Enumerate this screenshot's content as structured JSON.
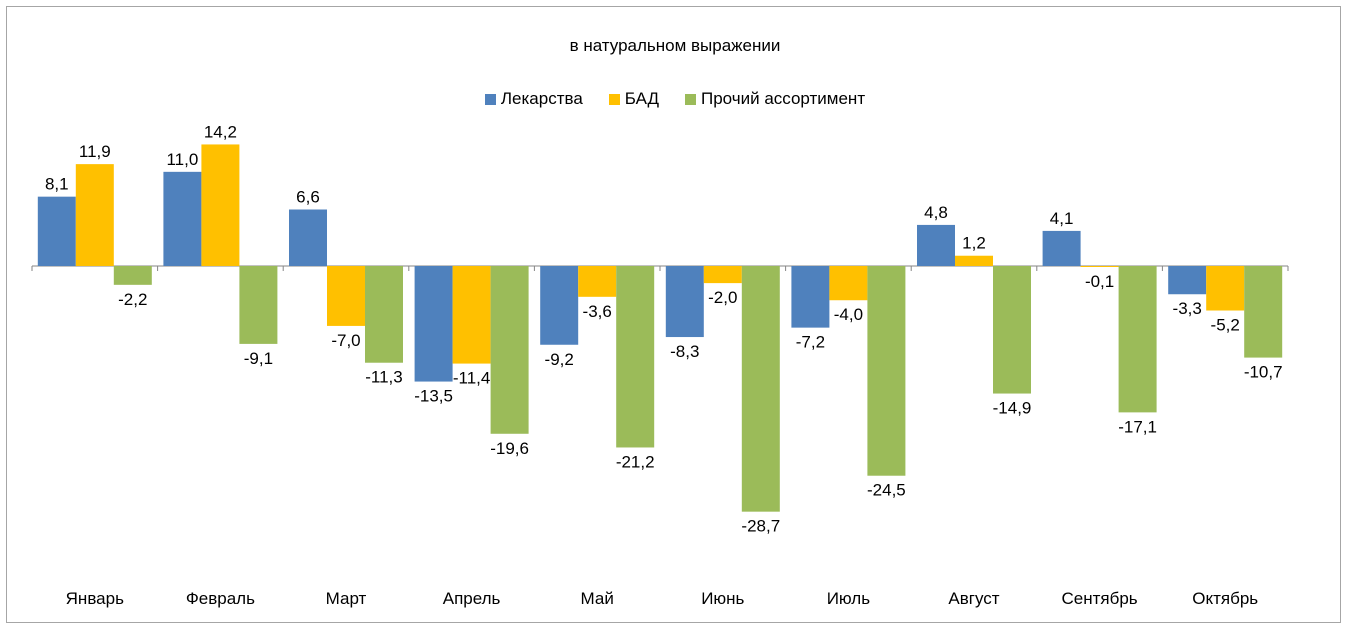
{
  "chart_data": {
    "type": "bar",
    "title": "в натуральном выражении",
    "categories": [
      "Январь",
      "Февраль",
      "Март",
      "Апрель",
      "Май",
      "Июнь",
      "Июль",
      "Август",
      "Сентябрь",
      "Октябрь"
    ],
    "series": [
      {
        "name": "Лекарства",
        "color": "#4f81bd",
        "values": [
          8.1,
          11.0,
          6.6,
          -13.5,
          -9.2,
          -8.3,
          -7.2,
          4.8,
          4.1,
          -3.3
        ],
        "labels": [
          "8,1",
          "11,0",
          "6,6",
          "-13,5",
          "-9,2",
          "-8,3",
          "-7,2",
          "4,8",
          "4,1",
          "-3,3"
        ]
      },
      {
        "name": "БАД",
        "color": "#ffc000",
        "values": [
          11.9,
          14.2,
          -7.0,
          -11.4,
          -3.6,
          -2.0,
          -4.0,
          1.2,
          -0.1,
          -5.2
        ],
        "labels": [
          "11,9",
          "14,2",
          "-7,0",
          "-11,4",
          "-3,6",
          "-2,0",
          "-4,0",
          "1,2",
          "-0,1",
          "-5,2"
        ]
      },
      {
        "name": "Прочий ассортимент",
        "color": "#9bbb59",
        "values": [
          -2.2,
          -9.1,
          -11.3,
          -19.6,
          -21.2,
          -28.7,
          -24.5,
          -14.9,
          -17.1,
          -10.7
        ],
        "labels": [
          "-2,2",
          "-9,1",
          "-11,3",
          "-19,6",
          "-21,2",
          "-28,7",
          "-24,5",
          "-14,9",
          "-17,1",
          "-10,7"
        ]
      }
    ],
    "legend_position": "top",
    "grid": false
  }
}
